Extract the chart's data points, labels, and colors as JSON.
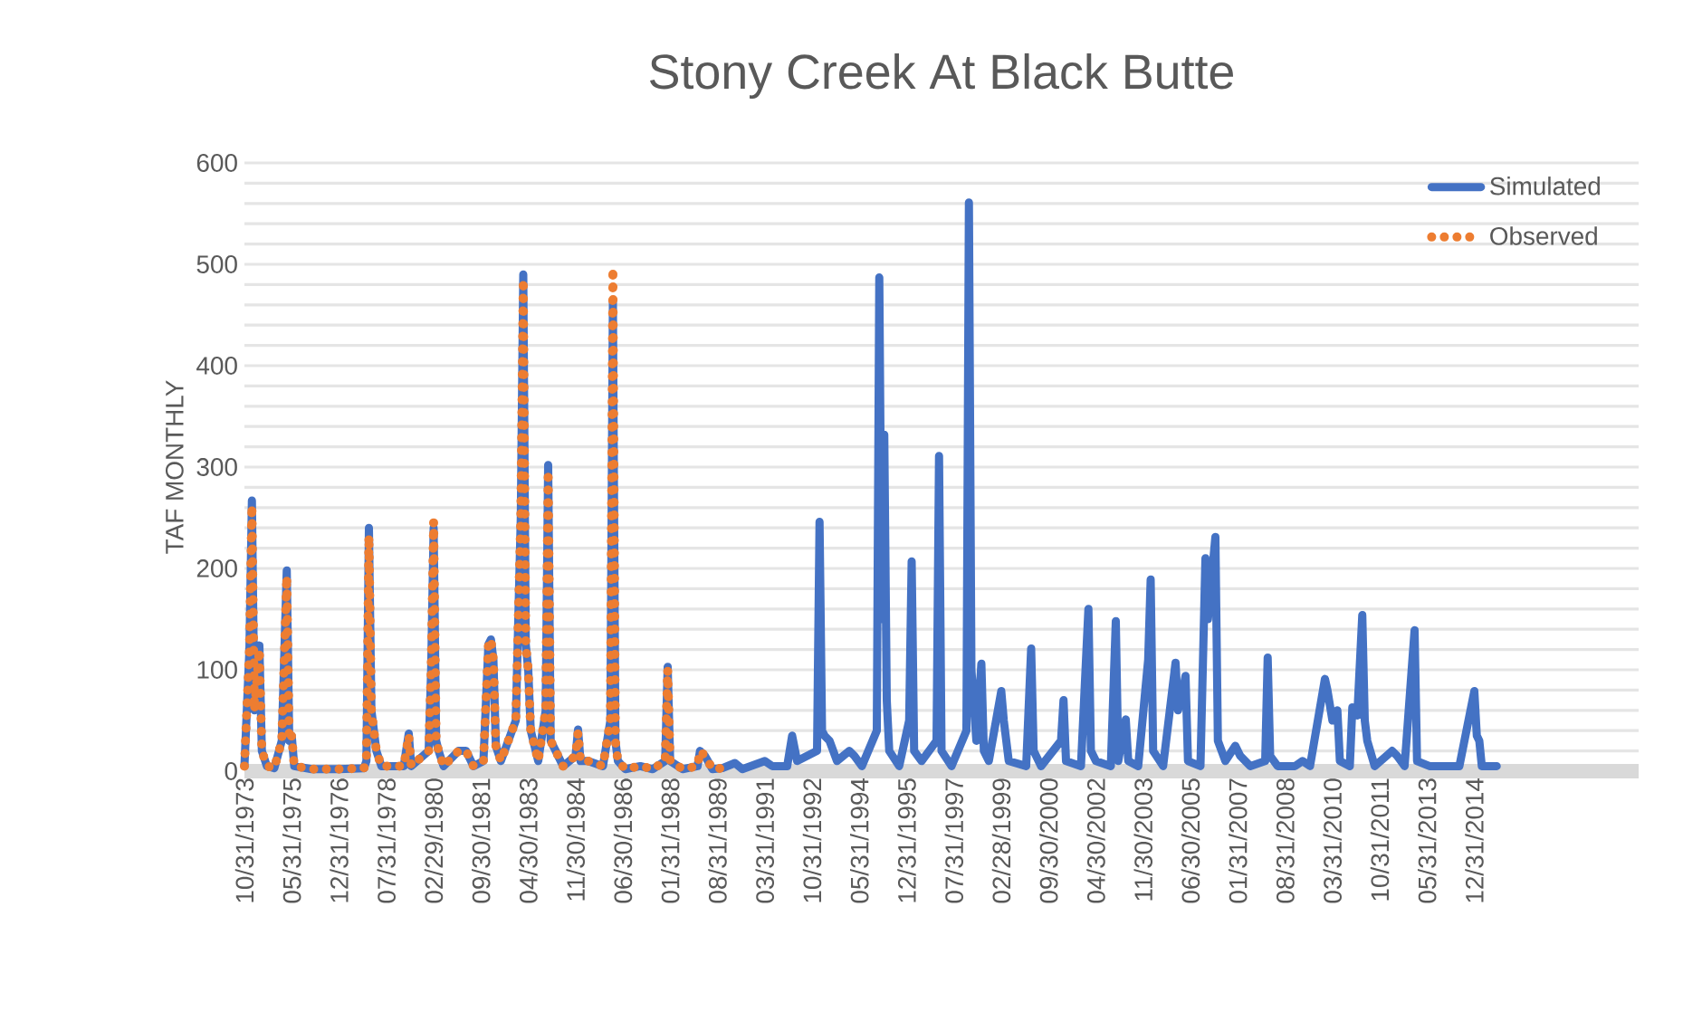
{
  "chart_data": {
    "type": "line",
    "title": "Stony Creek At Black Butte",
    "ylabel": "TAF MONTHLY",
    "series": [
      {
        "name": "Simulated",
        "color": "#4472c4",
        "line_style": "solid",
        "x": [
          "1973-10",
          "1973-12",
          "1974-01",
          "1974-02",
          "1974-03",
          "1974-04",
          "1974-05",
          "1974-07",
          "1974-10",
          "1975-01",
          "1975-03",
          "1975-04",
          "1975-05",
          "1975-06",
          "1976-01",
          "1976-12",
          "1977-10",
          "1977-11",
          "1977-12",
          "1978-01",
          "1978-02",
          "1978-03",
          "1978-05",
          "1978-08",
          "1979-02",
          "1979-04",
          "1979-05",
          "1979-12",
          "1980-01",
          "1980-02",
          "1980-03",
          "1980-04",
          "1980-06",
          "1980-12",
          "1981-03",
          "1981-06",
          "1981-10",
          "1981-12",
          "1982-01",
          "1982-02",
          "1982-03",
          "1982-05",
          "1982-11",
          "1983-01",
          "1983-02",
          "1983-03",
          "1983-04",
          "1983-05",
          "1983-08",
          "1983-11",
          "1983-12",
          "1984-01",
          "1984-03",
          "1984-06",
          "1984-11",
          "1984-12",
          "1985-01",
          "1985-04",
          "1985-10",
          "1986-01",
          "1986-02",
          "1986-03",
          "1986-04",
          "1986-07",
          "1987-01",
          "1987-06",
          "1987-11",
          "1987-12",
          "1988-01",
          "1988-06",
          "1988-12",
          "1989-01",
          "1989-03",
          "1989-06",
          "1989-10",
          "1990-03",
          "1990-06",
          "1991-03",
          "1991-06",
          "1991-12",
          "1992-02",
          "1992-04",
          "1992-12",
          "1993-01",
          "1993-02",
          "1993-03",
          "1993-05",
          "1993-08",
          "1994-01",
          "1994-03",
          "1994-06",
          "1994-12",
          "1995-01",
          "1995-02",
          "1995-03",
          "1995-04",
          "1995-05",
          "1995-09",
          "1996-01",
          "1996-02",
          "1996-03",
          "1996-06",
          "1996-12",
          "1997-01",
          "1997-02",
          "1997-06",
          "1997-12",
          "1998-01",
          "1998-02",
          "1998-04",
          "1998-06",
          "1998-07",
          "1998-09",
          "1999-02",
          "1999-03",
          "1999-05",
          "1999-12",
          "2000-02",
          "2000-03",
          "2000-06",
          "2001-02",
          "2001-03",
          "2001-04",
          "2001-10",
          "2002-01",
          "2002-02",
          "2002-04",
          "2002-10",
          "2002-12",
          "2003-01",
          "2003-03",
          "2003-04",
          "2003-05",
          "2003-09",
          "2004-01",
          "2004-02",
          "2004-03",
          "2004-07",
          "2004-12",
          "2005-01",
          "2005-03",
          "2005-04",
          "2005-05",
          "2005-10",
          "2005-12",
          "2006-01",
          "2006-04",
          "2006-05",
          "2006-08",
          "2006-12",
          "2007-02",
          "2007-06",
          "2007-12",
          "2008-01",
          "2008-02",
          "2008-05",
          "2008-12",
          "2009-03",
          "2009-06",
          "2009-12",
          "2010-01",
          "2010-03",
          "2010-05",
          "2010-06",
          "2010-10",
          "2010-11",
          "2011-01",
          "2011-03",
          "2011-04",
          "2011-05",
          "2011-08",
          "2012-03",
          "2012-05",
          "2012-08",
          "2012-12",
          "2013-01",
          "2013-06",
          "2014-02",
          "2014-06",
          "2014-12",
          "2015-01",
          "2015-02",
          "2015-03",
          "2015-09"
        ],
        "values": [
          5,
          120,
          267,
          60,
          90,
          124,
          20,
          5,
          3,
          30,
          198,
          30,
          35,
          5,
          2,
          2,
          3,
          10,
          240,
          60,
          40,
          20,
          5,
          5,
          5,
          37,
          5,
          20,
          100,
          240,
          30,
          20,
          5,
          20,
          20,
          5,
          10,
          125,
          130,
          110,
          25,
          10,
          50,
          250,
          490,
          125,
          100,
          40,
          10,
          60,
          302,
          30,
          20,
          5,
          15,
          41,
          10,
          10,
          5,
          50,
          463,
          30,
          10,
          2,
          5,
          2,
          10,
          103,
          10,
          2,
          5,
          20,
          15,
          2,
          3,
          8,
          2,
          10,
          5,
          5,
          35,
          10,
          20,
          246,
          40,
          35,
          30,
          10,
          20,
          15,
          5,
          40,
          487,
          150,
          332,
          70,
          20,
          5,
          50,
          207,
          20,
          10,
          30,
          311,
          20,
          5,
          40,
          561,
          100,
          30,
          106,
          20,
          10,
          79,
          50,
          10,
          5,
          121,
          20,
          5,
          30,
          70,
          10,
          5,
          160,
          20,
          10,
          5,
          148,
          10,
          40,
          51,
          10,
          5,
          110,
          189,
          20,
          5,
          107,
          60,
          80,
          94,
          10,
          5,
          210,
          150,
          231,
          30,
          10,
          25,
          15,
          5,
          10,
          112,
          15,
          5,
          5,
          10,
          5,
          91,
          80,
          50,
          60,
          10,
          5,
          63,
          55,
          154,
          50,
          30,
          5,
          20,
          15,
          5,
          139,
          10,
          5,
          5,
          5,
          79,
          35,
          30,
          5,
          5
        ]
      },
      {
        "name": "Observed",
        "color": "#ed7d31",
        "line_style": "dotted",
        "x": [
          "1973-10",
          "1973-12",
          "1974-01",
          "1974-02",
          "1974-03",
          "1974-04",
          "1974-05",
          "1974-07",
          "1974-10",
          "1975-01",
          "1975-03",
          "1975-04",
          "1975-05",
          "1975-06",
          "1976-01",
          "1976-12",
          "1977-10",
          "1977-11",
          "1977-12",
          "1978-01",
          "1978-02",
          "1978-03",
          "1978-05",
          "1978-08",
          "1979-02",
          "1979-04",
          "1979-05",
          "1979-12",
          "1980-01",
          "1980-02",
          "1980-03",
          "1980-04",
          "1980-06",
          "1980-12",
          "1981-03",
          "1981-06",
          "1981-10",
          "1981-12",
          "1982-01",
          "1982-02",
          "1982-03",
          "1982-05",
          "1982-11",
          "1983-01",
          "1983-02",
          "1983-03",
          "1983-04",
          "1983-05",
          "1983-08",
          "1983-11",
          "1983-12",
          "1984-01",
          "1984-03",
          "1984-06",
          "1984-11",
          "1984-12",
          "1985-01",
          "1985-04",
          "1985-10",
          "1986-01",
          "1986-02",
          "1986-03",
          "1986-04",
          "1986-07",
          "1987-01",
          "1987-06",
          "1987-11",
          "1987-12",
          "1988-01",
          "1988-06",
          "1988-12",
          "1989-01",
          "1989-03",
          "1989-06",
          "1989-10",
          "1989-12"
        ],
        "values": [
          5,
          120,
          262,
          60,
          90,
          120,
          20,
          5,
          3,
          30,
          192,
          30,
          35,
          5,
          2,
          2,
          3,
          10,
          232,
          60,
          40,
          20,
          5,
          5,
          5,
          35,
          5,
          20,
          100,
          246,
          30,
          20,
          5,
          20,
          20,
          5,
          10,
          125,
          130,
          110,
          25,
          10,
          50,
          250,
          485,
          125,
          100,
          40,
          10,
          60,
          296,
          30,
          20,
          5,
          15,
          38,
          10,
          10,
          5,
          50,
          496,
          30,
          10,
          2,
          5,
          2,
          10,
          100,
          10,
          2,
          5,
          20,
          15,
          2,
          3,
          3
        ]
      }
    ],
    "xlim": [
      "1973-10",
      "2020-06"
    ],
    "xticks": [
      {
        "value": "1973-10",
        "label": "10/31/1973"
      },
      {
        "value": "1975-05",
        "label": "05/31/1975"
      },
      {
        "value": "1976-12",
        "label": "12/31/1976"
      },
      {
        "value": "1978-07",
        "label": "07/31/1978"
      },
      {
        "value": "1980-02",
        "label": "02/29/1980"
      },
      {
        "value": "1981-09",
        "label": "09/30/1981"
      },
      {
        "value": "1983-04",
        "label": "04/30/1983"
      },
      {
        "value": "1984-11",
        "label": "11/30/1984"
      },
      {
        "value": "1986-06",
        "label": "06/30/1986"
      },
      {
        "value": "1988-01",
        "label": "01/31/1988"
      },
      {
        "value": "1989-08",
        "label": "08/31/1989"
      },
      {
        "value": "1991-03",
        "label": "03/31/1991"
      },
      {
        "value": "1992-10",
        "label": "10/31/1992"
      },
      {
        "value": "1994-05",
        "label": "05/31/1994"
      },
      {
        "value": "1995-12",
        "label": "12/31/1995"
      },
      {
        "value": "1997-07",
        "label": "07/31/1997"
      },
      {
        "value": "1999-02",
        "label": "02/28/1999"
      },
      {
        "value": "2000-09",
        "label": "09/30/2000"
      },
      {
        "value": "2002-04",
        "label": "04/30/2002"
      },
      {
        "value": "2003-11",
        "label": "11/30/2003"
      },
      {
        "value": "2005-06",
        "label": "06/30/2005"
      },
      {
        "value": "2007-01",
        "label": "01/31/2007"
      },
      {
        "value": "2008-08",
        "label": "08/31/2008"
      },
      {
        "value": "2010-03",
        "label": "03/31/2010"
      },
      {
        "value": "2011-10",
        "label": "10/31/2011"
      },
      {
        "value": "2013-05",
        "label": "05/31/2013"
      },
      {
        "value": "2014-12",
        "label": "12/31/2014"
      }
    ],
    "ylim": [
      0,
      600
    ],
    "yticks": [
      0,
      {
        "value": 20,
        "label": null
      },
      {
        "value": 40,
        "label": null
      },
      {
        "value": 60,
        "label": null
      },
      {
        "value": 80,
        "label": null
      },
      100,
      {
        "value": 120,
        "label": null
      },
      {
        "value": 140,
        "label": null
      },
      {
        "value": 160,
        "label": null
      },
      {
        "value": 180,
        "label": null
      },
      200,
      {
        "value": 220,
        "label": null
      },
      {
        "value": 240,
        "label": null
      },
      {
        "value": 260,
        "label": null
      },
      {
        "value": 280,
        "label": null
      },
      300,
      {
        "value": 320,
        "label": null
      },
      {
        "value": 340,
        "label": null
      },
      {
        "value": 360,
        "label": null
      },
      {
        "value": 380,
        "label": null
      },
      400,
      {
        "value": 420,
        "label": null
      },
      {
        "value": 440,
        "label": null
      },
      {
        "value": 460,
        "label": null
      },
      {
        "value": 480,
        "label": null
      },
      500,
      {
        "value": 520,
        "label": null
      },
      {
        "value": 540,
        "label": null
      },
      {
        "value": 560,
        "label": null
      },
      {
        "value": 580,
        "label": null
      },
      600
    ],
    "grid": "y",
    "legend": "top right",
    "marker": "none"
  }
}
